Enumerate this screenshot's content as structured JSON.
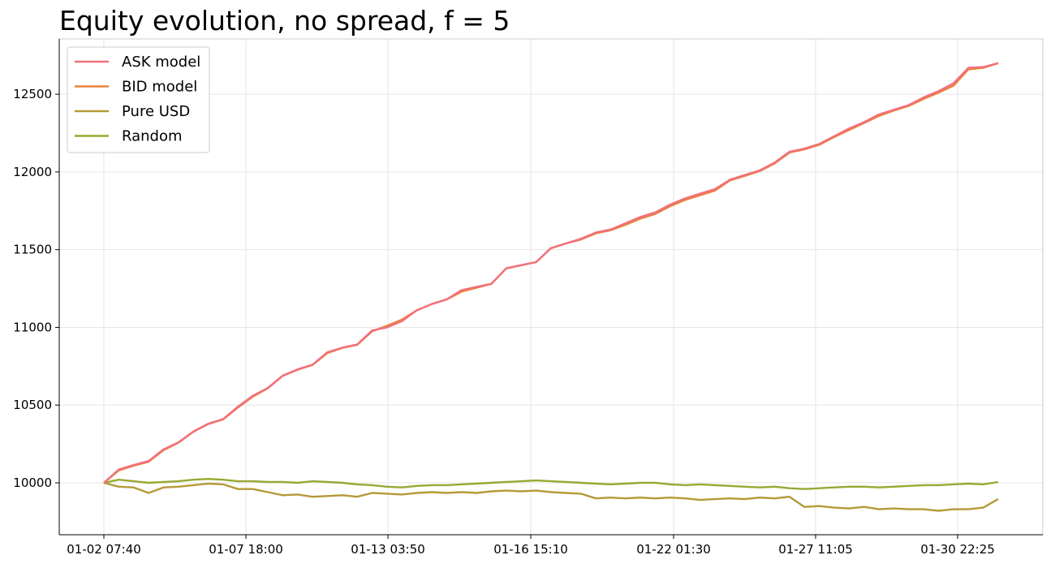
{
  "chart_data": {
    "type": "line",
    "title": "Equity evolution, no spread, f = 5",
    "xlabel": "",
    "ylabel": "",
    "x_ticks": [
      "01-02 07:40",
      "01-07 18:00",
      "01-13 03:50",
      "01-16 15:10",
      "01-22 01:30",
      "01-27 11:05",
      "01-30 22:25"
    ],
    "y_ticks": [
      10000,
      10500,
      11000,
      11500,
      12000,
      12500
    ],
    "ylim": [
      9680,
      12870
    ],
    "grid": true,
    "legend_position": "top-left",
    "x_positions": [
      0,
      1,
      2,
      3,
      4,
      5,
      6,
      7,
      8,
      9,
      10,
      11,
      12,
      13,
      14,
      15,
      16,
      17,
      18,
      19,
      20,
      21,
      22,
      23,
      24,
      25,
      26,
      27,
      28,
      29,
      30,
      31,
      32,
      33,
      34,
      35,
      36,
      37,
      38,
      39,
      40,
      41,
      42,
      43,
      44,
      45,
      46,
      47,
      48,
      49,
      50,
      51,
      52,
      53,
      54,
      55,
      56,
      57,
      58,
      59,
      60
    ],
    "series": [
      {
        "name": "ASK model",
        "color": "#f2707c",
        "values": [
          10000,
          10085,
          10115,
          10140,
          10215,
          10260,
          10330,
          10380,
          10410,
          10490,
          10560,
          10610,
          10690,
          10730,
          10760,
          10840,
          10870,
          10890,
          10980,
          11000,
          11040,
          11110,
          11150,
          11180,
          11240,
          11260,
          11280,
          11380,
          11400,
          11420,
          11510,
          11540,
          11570,
          11610,
          11630,
          11670,
          11710,
          11740,
          11790,
          11830,
          11860,
          11890,
          11950,
          11980,
          12010,
          12060,
          12130,
          12150,
          12180,
          12230,
          12280,
          12320,
          12370,
          12400,
          12430,
          12480,
          12520,
          12570,
          12670,
          12675,
          12700
        ]
      },
      {
        "name": "BID model",
        "color": "#e8823a",
        "values": [
          10000,
          10080,
          10110,
          10135,
          10210,
          10258,
          10328,
          10378,
          10408,
          10485,
          10555,
          10608,
          10688,
          10728,
          10758,
          10835,
          10868,
          10888,
          10975,
          11010,
          11050,
          11110,
          11150,
          11180,
          11230,
          11255,
          11280,
          11380,
          11400,
          11420,
          11510,
          11540,
          11565,
          11605,
          11625,
          11660,
          11700,
          11730,
          11780,
          11820,
          11850,
          11880,
          11945,
          11975,
          12005,
          12055,
          12125,
          12145,
          12175,
          12225,
          12270,
          12315,
          12360,
          12395,
          12425,
          12470,
          12510,
          12555,
          12660,
          12670,
          12700
        ]
      },
      {
        "name": "Pure USD",
        "color": "#b69a38",
        "values": [
          10000,
          9975,
          9970,
          9935,
          9970,
          9975,
          9985,
          9995,
          9990,
          9960,
          9960,
          9940,
          9920,
          9925,
          9910,
          9915,
          9920,
          9910,
          9935,
          9930,
          9925,
          9935,
          9940,
          9935,
          9940,
          9935,
          9945,
          9950,
          9945,
          9950,
          9940,
          9935,
          9930,
          9900,
          9905,
          9900,
          9905,
          9900,
          9905,
          9900,
          9890,
          9895,
          9900,
          9895,
          9905,
          9900,
          9910,
          9845,
          9850,
          9840,
          9835,
          9845,
          9830,
          9835,
          9830,
          9830,
          9820,
          9830,
          9830,
          9840,
          9895
        ]
      },
      {
        "name": "Random",
        "color": "#9aa832",
        "values": [
          10000,
          10020,
          10010,
          10000,
          10005,
          10010,
          10020,
          10025,
          10020,
          10010,
          10010,
          10005,
          10005,
          10000,
          10010,
          10005,
          10000,
          9990,
          9985,
          9975,
          9970,
          9980,
          9985,
          9985,
          9990,
          9995,
          10000,
          10005,
          10010,
          10015,
          10010,
          10005,
          10000,
          9995,
          9990,
          9995,
          10000,
          10000,
          9990,
          9985,
          9990,
          9985,
          9980,
          9975,
          9970,
          9975,
          9965,
          9960,
          9965,
          9970,
          9975,
          9975,
          9970,
          9975,
          9980,
          9985,
          9985,
          9990,
          9995,
          9990,
          10005
        ]
      }
    ]
  }
}
